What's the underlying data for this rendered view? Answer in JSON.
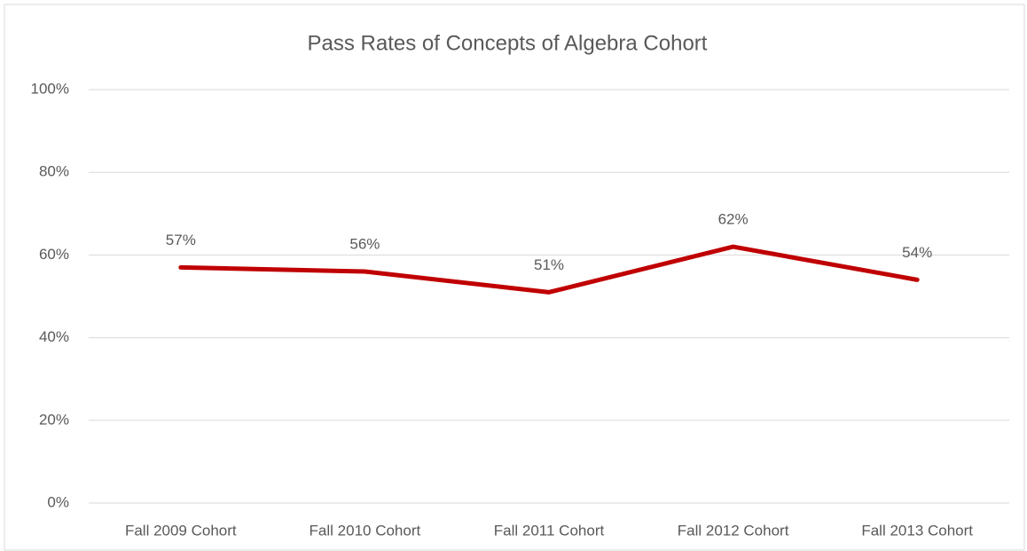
{
  "chart_data": {
    "type": "line",
    "title": "Pass Rates of Concepts of Algebra Cohort",
    "categories": [
      "Fall 2009 Cohort",
      "Fall 2010 Cohort",
      "Fall 2011 Cohort",
      "Fall 2012 Cohort",
      "Fall 2013 Cohort"
    ],
    "values": [
      57,
      56,
      51,
      62,
      54
    ],
    "value_labels": [
      "57%",
      "56%",
      "51%",
      "62%",
      "54%"
    ],
    "color": "#c00000",
    "ylim": [
      0,
      100
    ],
    "yticks": [
      {
        "value": 0,
        "label": "0%"
      },
      {
        "value": 20,
        "label": "20%"
      },
      {
        "value": 40,
        "label": "40%"
      },
      {
        "value": 60,
        "label": "60%"
      },
      {
        "value": 80,
        "label": "80%"
      },
      {
        "value": 100,
        "label": "100%"
      }
    ],
    "grid": true
  }
}
